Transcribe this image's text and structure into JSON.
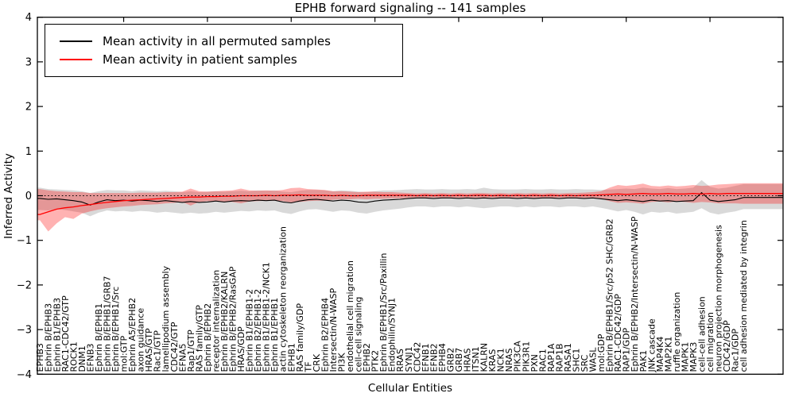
{
  "figure": {
    "title": "EPHB forward signaling -- 141 samples",
    "xlabel": "Cellular Entities",
    "ylabel": "Inferred Activity"
  },
  "legend": {
    "entries": [
      {
        "label": "Mean activity in all permuted samples",
        "color": "#000000"
      },
      {
        "label": "Mean activity in patient samples",
        "color": "#ff0000"
      }
    ]
  },
  "chart_data": {
    "type": "line",
    "title": "EPHB forward signaling -- 141 samples",
    "xlabel": "Cellular Entities",
    "ylabel": "Inferred Activity",
    "ylim": [
      -4,
      4
    ],
    "yticks": [
      -4,
      -3,
      -2,
      -1,
      0,
      1,
      2,
      3,
      4
    ],
    "grid": false,
    "legend_position": "upper left",
    "zero_line": {
      "style": "dotted",
      "color": "#000000",
      "value": 0
    },
    "categories": [
      "EPHB3",
      "Ephrin B/EPHB3",
      "Ephrin B1/EPHB3",
      "RAC1-CDC42/GTP",
      "ROCK1",
      "DNM1",
      "EFNB3",
      "Ephrin B/EPHB1",
      "Ephrin B/EPHB1/GRB7",
      "Ephrin B/EPHB1/Src",
      "mol:GTP",
      "Ephrin A5/EPHB2",
      "axon guidance",
      "HRAS/GTP",
      "Rac1/GTP",
      "lamellipodium assembly",
      "CDC42/GTP",
      "EFNA5",
      "Rap1/GTP",
      "RAS family/GTP",
      "Ephrin B/EPHB2",
      "receptor internalization",
      "Ephrin B/EPHB2/KALRN",
      "Ephrin B/EPHB2/RasGAP",
      "HRAS/GDP",
      "Ephrin B1/EPHB1-2",
      "Ephrin B2/EPHB1-2",
      "Ephrin B1/EPHB1-2/NCK1",
      "Ephrin B1/EPHB1",
      "actin cytoskeleton reorganization",
      "EPHB1",
      "RAS family/GDP",
      "TF",
      "CRK",
      "Ephrin B2/EPHB4",
      "Intersectin/N-WASP",
      "PI3K",
      "endothelial cell migration",
      "cell-cell signaling",
      "EPHB2",
      "PTK2",
      "Ephrin B/EPHB1/Src/Paxillin",
      "Endophilin/SYNJ1",
      "RRAS",
      "SYNJ1",
      "CDC42",
      "EFNB1",
      "EFNB2",
      "EPHB4",
      "GRB2",
      "GRB7",
      "HRAS",
      "ITSN1",
      "KALRN",
      "KRAS",
      "NCK1",
      "NRAS",
      "PIK3CA",
      "PIK3R1",
      "PXN",
      "RAC1",
      "RAP1A",
      "RAP1B",
      "RASA1",
      "SHC1",
      "SRC",
      "WASL",
      "mol:GDP",
      "Ephrin B/EPHB1/Src/p52 SHC/GRB2",
      "RAC1-CDC42/GDP",
      "RAP1/GDP",
      "Ephrin B/EPHB2/Intersectin/N-WASP",
      "PAK1",
      "JNK cascade",
      "MAP4K4",
      "MAP2K1",
      "ruffle organization",
      "MAPK1",
      "MAPK3",
      "cell-cell adhesion",
      "cell migration",
      "neuron projection morphogenesis",
      "CDC42/GDP",
      "Rac1/GDP",
      "cell adhesion mediated by integrin"
    ],
    "series": [
      {
        "name": "Mean activity in all permuted samples",
        "color": "#000000",
        "band_color": "#888888",
        "band_opacity": 0.32,
        "values": [
          -0.06,
          -0.08,
          -0.07,
          -0.09,
          -0.11,
          -0.14,
          -0.21,
          -0.14,
          -0.09,
          -0.11,
          -0.1,
          -0.12,
          -0.1,
          -0.11,
          -0.13,
          -0.11,
          -0.13,
          -0.15,
          -0.13,
          -0.15,
          -0.14,
          -0.12,
          -0.14,
          -0.12,
          -0.11,
          -0.12,
          -0.1,
          -0.11,
          -0.1,
          -0.14,
          -0.16,
          -0.12,
          -0.09,
          -0.08,
          -0.1,
          -0.12,
          -0.1,
          -0.11,
          -0.14,
          -0.15,
          -0.12,
          -0.1,
          -0.09,
          -0.08,
          -0.06,
          -0.05,
          -0.05,
          -0.06,
          -0.05,
          -0.05,
          -0.06,
          -0.05,
          -0.06,
          -0.05,
          -0.06,
          -0.05,
          -0.05,
          -0.06,
          -0.05,
          -0.06,
          -0.05,
          -0.05,
          -0.06,
          -0.05,
          -0.05,
          -0.06,
          -0.05,
          -0.07,
          -0.09,
          -0.11,
          -0.09,
          -0.11,
          -0.13,
          -0.1,
          -0.12,
          -0.11,
          -0.13,
          -0.12,
          -0.11,
          0.07,
          -0.1,
          -0.13,
          -0.11,
          -0.09,
          -0.04
        ],
        "band_hi": [
          0.18,
          0.15,
          0.14,
          0.13,
          0.12,
          0.1,
          0.06,
          0.1,
          0.13,
          0.12,
          0.12,
          0.1,
          0.12,
          0.11,
          0.1,
          0.11,
          0.1,
          0.08,
          0.1,
          0.08,
          0.09,
          0.1,
          0.09,
          0.1,
          0.11,
          0.1,
          0.12,
          0.11,
          0.12,
          0.09,
          0.08,
          0.11,
          0.13,
          0.13,
          0.12,
          0.1,
          0.12,
          0.11,
          0.09,
          0.08,
          0.1,
          0.12,
          0.12,
          0.13,
          0.14,
          0.15,
          0.14,
          0.14,
          0.15,
          0.14,
          0.14,
          0.15,
          0.14,
          0.18,
          0.15,
          0.14,
          0.14,
          0.14,
          0.15,
          0.14,
          0.14,
          0.15,
          0.14,
          0.14,
          0.15,
          0.14,
          0.14,
          0.13,
          0.14,
          0.15,
          0.16,
          0.15,
          0.18,
          0.16,
          0.15,
          0.17,
          0.15,
          0.16,
          0.18,
          0.35,
          0.2,
          0.16,
          0.18,
          0.22,
          0.26
        ],
        "band_lo": [
          -0.32,
          -0.33,
          -0.3,
          -0.32,
          -0.35,
          -0.38,
          -0.46,
          -0.38,
          -0.33,
          -0.35,
          -0.34,
          -0.36,
          -0.34,
          -0.35,
          -0.38,
          -0.36,
          -0.38,
          -0.4,
          -0.38,
          -0.4,
          -0.39,
          -0.36,
          -0.38,
          -0.36,
          -0.34,
          -0.35,
          -0.33,
          -0.34,
          -0.33,
          -0.38,
          -0.41,
          -0.35,
          -0.31,
          -0.3,
          -0.33,
          -0.36,
          -0.33,
          -0.34,
          -0.38,
          -0.4,
          -0.36,
          -0.33,
          -0.31,
          -0.29,
          -0.26,
          -0.24,
          -0.24,
          -0.26,
          -0.24,
          -0.24,
          -0.26,
          -0.24,
          -0.26,
          -0.28,
          -0.26,
          -0.24,
          -0.24,
          -0.26,
          -0.24,
          -0.26,
          -0.24,
          -0.24,
          -0.26,
          -0.24,
          -0.24,
          -0.26,
          -0.24,
          -0.27,
          -0.31,
          -0.35,
          -0.32,
          -0.36,
          -0.42,
          -0.36,
          -0.38,
          -0.36,
          -0.4,
          -0.38,
          -0.36,
          -0.28,
          -0.38,
          -0.42,
          -0.38,
          -0.35,
          -0.3
        ]
      },
      {
        "name": "Mean activity in patient samples",
        "color": "#ff0000",
        "band_color": "#ff0000",
        "band_opacity": 0.3,
        "values": [
          -0.42,
          -0.36,
          -0.3,
          -0.27,
          -0.25,
          -0.22,
          -0.2,
          -0.17,
          -0.15,
          -0.13,
          -0.11,
          -0.1,
          -0.09,
          -0.08,
          -0.07,
          -0.06,
          -0.05,
          -0.04,
          -0.03,
          -0.03,
          -0.02,
          -0.02,
          -0.01,
          -0.01,
          0.0,
          0.0,
          0.0,
          0.01,
          0.0,
          0.01,
          0.01,
          0.02,
          0.01,
          0.01,
          0.01,
          0.0,
          0.01,
          0.0,
          0.0,
          0.01,
          0.01,
          0.01,
          0.01,
          0.01,
          0.01,
          0.0,
          0.01,
          0.0,
          0.01,
          0.0,
          0.01,
          0.0,
          0.01,
          0.01,
          0.0,
          0.01,
          0.0,
          0.01,
          0.0,
          0.01,
          0.0,
          0.01,
          0.0,
          0.01,
          0.0,
          0.01,
          0.01,
          0.02,
          0.03,
          0.04,
          0.03,
          0.04,
          0.05,
          0.04,
          0.04,
          0.05,
          0.04,
          0.04,
          0.05,
          0.04,
          0.05,
          0.04,
          0.05,
          0.05,
          0.05
        ],
        "band_hi": [
          0.15,
          0.12,
          0.1,
          0.09,
          0.08,
          0.08,
          0.06,
          0.06,
          0.06,
          0.06,
          0.06,
          0.06,
          0.07,
          0.07,
          0.07,
          0.08,
          0.08,
          0.09,
          0.16,
          0.1,
          0.09,
          0.1,
          0.11,
          0.12,
          0.16,
          0.12,
          0.11,
          0.12,
          0.11,
          0.13,
          0.17,
          0.18,
          0.15,
          0.14,
          0.13,
          0.1,
          0.1,
          0.09,
          0.08,
          0.09,
          0.09,
          0.08,
          0.08,
          0.07,
          0.06,
          0.05,
          0.06,
          0.05,
          0.06,
          0.05,
          0.06,
          0.05,
          0.06,
          0.06,
          0.05,
          0.06,
          0.05,
          0.06,
          0.05,
          0.06,
          0.05,
          0.06,
          0.05,
          0.06,
          0.06,
          0.07,
          0.08,
          0.1,
          0.18,
          0.24,
          0.22,
          0.24,
          0.27,
          0.22,
          0.21,
          0.23,
          0.21,
          0.22,
          0.24,
          0.22,
          0.23,
          0.25,
          0.26,
          0.27,
          0.28
        ],
        "band_lo": [
          -0.55,
          -0.8,
          -0.62,
          -0.48,
          -0.52,
          -0.4,
          -0.35,
          -0.31,
          -0.28,
          -0.26,
          -0.24,
          -0.23,
          -0.21,
          -0.2,
          -0.19,
          -0.17,
          -0.16,
          -0.14,
          -0.22,
          -0.14,
          -0.12,
          -0.13,
          -0.13,
          -0.14,
          -0.17,
          -0.13,
          -0.12,
          -0.11,
          -0.11,
          -0.12,
          -0.15,
          -0.14,
          -0.12,
          -0.11,
          -0.11,
          -0.09,
          -0.08,
          -0.08,
          -0.07,
          -0.08,
          -0.07,
          -0.07,
          -0.06,
          -0.06,
          -0.05,
          -0.04,
          -0.05,
          -0.04,
          -0.05,
          -0.04,
          -0.05,
          -0.04,
          -0.05,
          -0.05,
          -0.04,
          -0.05,
          -0.04,
          -0.05,
          -0.04,
          -0.05,
          -0.04,
          -0.05,
          -0.04,
          -0.05,
          -0.04,
          -0.05,
          -0.06,
          -0.07,
          -0.12,
          -0.16,
          -0.15,
          -0.16,
          -0.18,
          -0.14,
          -0.13,
          -0.15,
          -0.13,
          -0.14,
          -0.16,
          -0.14,
          -0.15,
          -0.17,
          -0.17,
          -0.17,
          -0.18
        ]
      }
    ]
  }
}
